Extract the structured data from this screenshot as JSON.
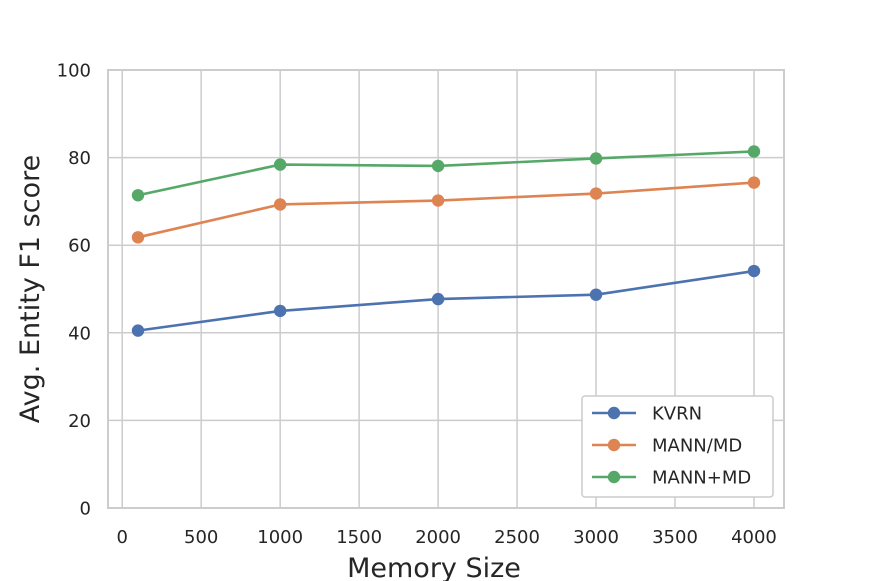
{
  "chart_data": {
    "type": "line",
    "xlabel": "Memory Size",
    "ylabel": "Avg. Entity F1 score",
    "xlim": [
      -90,
      4190
    ],
    "ylim": [
      0,
      100
    ],
    "xticks": [
      0,
      500,
      1000,
      1500,
      2000,
      2500,
      3000,
      3500,
      4000
    ],
    "yticks": [
      0,
      20,
      40,
      60,
      80,
      100
    ],
    "grid": true,
    "legend_position": "lower-right",
    "x": [
      100,
      1000,
      2000,
      3000,
      4000
    ],
    "series": [
      {
        "name": "KVRN",
        "color": "#4c72b0",
        "values": [
          40.5,
          45.0,
          47.7,
          48.7,
          54.1
        ]
      },
      {
        "name": "MANN/MD",
        "color": "#dd8452",
        "values": [
          61.8,
          69.3,
          70.2,
          71.8,
          74.3
        ]
      },
      {
        "name": "MANN+MD",
        "color": "#55a868",
        "values": [
          71.4,
          78.4,
          78.1,
          79.8,
          81.4
        ]
      }
    ]
  }
}
